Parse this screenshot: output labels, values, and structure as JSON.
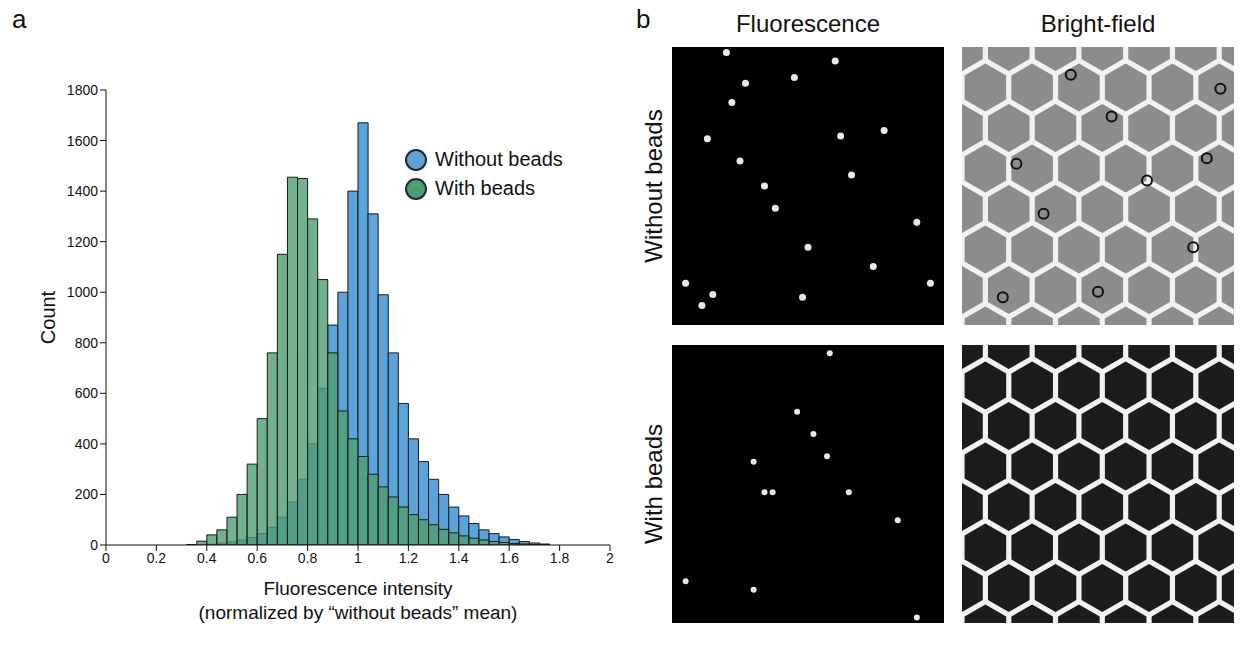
{
  "panel_labels": [
    "a",
    "b"
  ],
  "chart_data": {
    "type": "histogram",
    "xlabel": "Fluorescence intensity (normalized by “without beads” mean)",
    "ylabel": "Count",
    "bins": [
      0.32,
      0.36,
      0.4,
      0.44,
      0.48,
      0.52,
      0.56,
      0.6,
      0.64,
      0.68,
      0.72,
      0.76,
      0.8,
      0.84,
      0.88,
      0.92,
      0.96,
      1.0,
      1.04,
      1.08,
      1.12,
      1.16,
      1.2,
      1.24,
      1.28,
      1.32,
      1.36,
      1.4,
      1.44,
      1.48,
      1.52,
      1.56,
      1.6,
      1.64,
      1.68,
      1.72,
      1.76,
      1.8
    ],
    "series": [
      {
        "name": "Without beads",
        "color": "#5ba3d9",
        "values": [
          0,
          0,
          3,
          8,
          12,
          20,
          30,
          45,
          70,
          110,
          170,
          260,
          400,
          620,
          870,
          1000,
          1400,
          1670,
          1310,
          990,
          760,
          560,
          420,
          330,
          260,
          200,
          150,
          115,
          85,
          60,
          45,
          32,
          22,
          14,
          8,
          4,
          0
        ]
      },
      {
        "name": "With beads",
        "color": "#4f9e70",
        "values": [
          2,
          15,
          40,
          60,
          110,
          200,
          320,
          500,
          760,
          1150,
          1455,
          1450,
          1290,
          1050,
          760,
          530,
          420,
          350,
          280,
          230,
          190,
          150,
          120,
          100,
          80,
          62,
          48,
          36,
          27,
          20,
          14,
          10,
          6,
          4,
          2,
          1,
          0
        ]
      }
    ],
    "xlim": [
      0,
      2
    ],
    "ylim": [
      0,
      1800
    ],
    "xticks": [
      0,
      0.2,
      0.4,
      0.6,
      0.8,
      1,
      1.2,
      1.4,
      1.6,
      1.8,
      2
    ],
    "yticks": [
      0,
      200,
      400,
      600,
      800,
      1000,
      1200,
      1400,
      1600,
      1800
    ],
    "legend": "upper right",
    "grid": false
  },
  "images": {
    "column_titles": [
      "Fluorescence",
      "Bright-field"
    ],
    "row_titles": [
      "Without beads",
      "With beads"
    ]
  }
}
